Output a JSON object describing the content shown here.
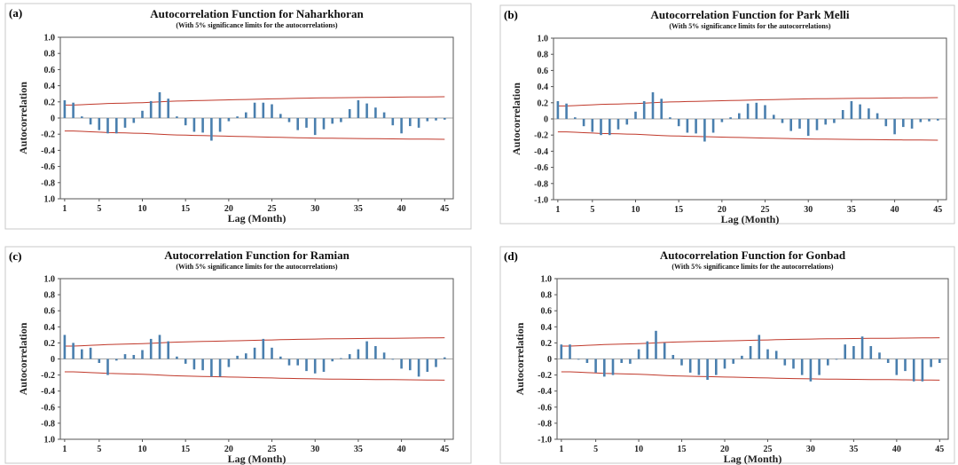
{
  "chart_data": [
    {
      "type": "bar",
      "panel_label": "(a)",
      "title": "Autocorrelation Function for Naharkhoran",
      "subtitle": "(With 5% significance limits for the autocorrelations)",
      "xlabel": "Lag (Month)",
      "ylabel": "Autocorrelation",
      "xlim": [
        0.5,
        46
      ],
      "ylim": [
        -1.0,
        1.0
      ],
      "xticks": [
        1,
        5,
        10,
        15,
        20,
        25,
        30,
        35,
        40,
        45
      ],
      "yticks": [
        "1.0",
        "0.8",
        "0.6",
        "0.4",
        "0.2",
        "0",
        "-0.2",
        "-0.4",
        "-0.6",
        "-0.8",
        "1.0"
      ],
      "x": [
        1,
        2,
        3,
        4,
        5,
        6,
        7,
        8,
        9,
        10,
        11,
        12,
        13,
        14,
        15,
        16,
        17,
        18,
        19,
        20,
        21,
        22,
        23,
        24,
        25,
        26,
        27,
        28,
        29,
        30,
        31,
        32,
        33,
        34,
        35,
        36,
        37,
        38,
        39,
        40,
        41,
        42,
        43,
        44,
        45
      ],
      "values": [
        0.22,
        0.19,
        0.02,
        -0.08,
        -0.15,
        -0.19,
        -0.19,
        -0.12,
        -0.06,
        0.09,
        0.21,
        0.32,
        0.24,
        0.02,
        -0.09,
        -0.17,
        -0.18,
        -0.28,
        -0.17,
        -0.04,
        0.02,
        0.07,
        0.19,
        0.19,
        0.17,
        0.05,
        -0.05,
        -0.15,
        -0.12,
        -0.21,
        -0.14,
        -0.07,
        -0.05,
        0.11,
        0.22,
        0.18,
        0.13,
        0.07,
        -0.09,
        -0.19,
        -0.1,
        -0.12,
        -0.04,
        -0.03,
        -0.02
      ],
      "limit_upper": [
        0.16,
        0.16,
        0.165,
        0.17,
        0.175,
        0.18,
        0.182,
        0.185,
        0.188,
        0.19,
        0.195,
        0.2,
        0.205,
        0.21,
        0.212,
        0.215,
        0.218,
        0.22,
        0.222,
        0.225,
        0.227,
        0.23,
        0.232,
        0.235,
        0.237,
        0.24,
        0.242,
        0.244,
        0.246,
        0.248,
        0.25,
        0.251,
        0.252,
        0.253,
        0.254,
        0.255,
        0.256,
        0.257,
        0.258,
        0.259,
        0.26,
        0.261,
        0.262,
        0.263,
        0.264
      ]
    },
    {
      "type": "bar",
      "panel_label": "(b)",
      "title": "Autocorrelation Function for Park Melli",
      "subtitle": "(With 5% significance limits for the autocorrelations)",
      "xlabel": "Lag (Month)",
      "ylabel": "Autocorrelation",
      "xlim": [
        0.5,
        46
      ],
      "ylim": [
        -1.0,
        1.0
      ],
      "xticks": [
        1,
        5,
        10,
        15,
        20,
        25,
        30,
        35,
        40,
        45
      ],
      "yticks": [
        "1.0",
        "0.8",
        "0.6",
        "0.4",
        "0.2",
        "0",
        "-0.2",
        "-0.4",
        "-0.6",
        "-0.8",
        "-1.0"
      ],
      "x": [
        1,
        2,
        3,
        4,
        5,
        6,
        7,
        8,
        9,
        10,
        11,
        12,
        13,
        14,
        15,
        16,
        17,
        18,
        19,
        20,
        21,
        22,
        23,
        24,
        25,
        26,
        27,
        28,
        29,
        30,
        31,
        32,
        33,
        34,
        35,
        36,
        37,
        38,
        39,
        40,
        41,
        42,
        43,
        44,
        45
      ],
      "values": [
        0.22,
        0.19,
        0.02,
        -0.09,
        -0.16,
        -0.2,
        -0.2,
        -0.13,
        -0.07,
        0.09,
        0.22,
        0.33,
        0.25,
        0.02,
        -0.09,
        -0.17,
        -0.18,
        -0.28,
        -0.17,
        -0.04,
        0.02,
        0.07,
        0.19,
        0.2,
        0.17,
        0.05,
        -0.05,
        -0.15,
        -0.12,
        -0.21,
        -0.14,
        -0.07,
        -0.05,
        0.11,
        0.22,
        0.18,
        0.13,
        0.07,
        -0.09,
        -0.19,
        -0.1,
        -0.12,
        -0.04,
        -0.03,
        -0.02
      ],
      "limit_upper": [
        0.16,
        0.16,
        0.165,
        0.17,
        0.175,
        0.18,
        0.182,
        0.185,
        0.188,
        0.19,
        0.195,
        0.2,
        0.205,
        0.21,
        0.212,
        0.215,
        0.218,
        0.22,
        0.222,
        0.225,
        0.227,
        0.23,
        0.232,
        0.235,
        0.237,
        0.24,
        0.242,
        0.244,
        0.246,
        0.248,
        0.25,
        0.251,
        0.252,
        0.253,
        0.254,
        0.255,
        0.256,
        0.257,
        0.258,
        0.259,
        0.26,
        0.261,
        0.262,
        0.263,
        0.264
      ]
    },
    {
      "type": "bar",
      "panel_label": "(c)",
      "title": "Autocorrelation Function for  Ramian",
      "subtitle": "(With 5% significance limits for the autocorrelations)",
      "xlabel": "Lag (Month)",
      "ylabel": "Autocorrelation",
      "xlim": [
        0.5,
        46
      ],
      "ylim": [
        -1.0,
        1.0
      ],
      "xticks": [
        1,
        5,
        10,
        15,
        20,
        25,
        30,
        35,
        40,
        45
      ],
      "yticks": [
        "1.0",
        "0.8",
        "0.6",
        "0.4",
        "0.2",
        "0",
        "-0.2",
        "-0.4",
        "-0.6",
        "-0.8",
        "1.0"
      ],
      "x": [
        1,
        2,
        3,
        4,
        5,
        6,
        7,
        8,
        9,
        10,
        11,
        12,
        13,
        14,
        15,
        16,
        17,
        18,
        19,
        20,
        21,
        22,
        23,
        24,
        25,
        26,
        27,
        28,
        29,
        30,
        31,
        32,
        33,
        34,
        35,
        36,
        37,
        38,
        39,
        40,
        41,
        42,
        43,
        44,
        45
      ],
      "values": [
        0.3,
        0.2,
        0.12,
        0.14,
        -0.05,
        -0.2,
        -0.02,
        0.06,
        0.05,
        0.11,
        0.25,
        0.3,
        0.22,
        0.03,
        -0.06,
        -0.13,
        -0.14,
        -0.22,
        -0.22,
        -0.1,
        0.04,
        0.07,
        0.14,
        0.25,
        0.14,
        0.03,
        -0.08,
        -0.08,
        -0.15,
        -0.18,
        -0.16,
        -0.03,
        0.01,
        0.06,
        0.12,
        0.22,
        0.16,
        0.08,
        0.0,
        -0.12,
        -0.14,
        -0.22,
        -0.16,
        -0.1,
        0.02
      ],
      "limit_upper": [
        0.16,
        0.16,
        0.165,
        0.17,
        0.175,
        0.18,
        0.182,
        0.185,
        0.188,
        0.19,
        0.195,
        0.2,
        0.205,
        0.21,
        0.212,
        0.215,
        0.218,
        0.22,
        0.222,
        0.225,
        0.227,
        0.23,
        0.232,
        0.235,
        0.237,
        0.24,
        0.242,
        0.244,
        0.246,
        0.248,
        0.25,
        0.251,
        0.252,
        0.253,
        0.254,
        0.255,
        0.256,
        0.257,
        0.258,
        0.259,
        0.26,
        0.261,
        0.262,
        0.263,
        0.264
      ]
    },
    {
      "type": "bar",
      "panel_label": "(d)",
      "title": "Autocorrelation Function for Gonbad",
      "subtitle": "(With 5% significance limits for the autocorrelations)",
      "xlabel": "Lag (Month)",
      "ylabel": "Autocorrelation",
      "xlim": [
        0.5,
        46
      ],
      "ylim": [
        -1.0,
        1.0
      ],
      "xticks": [
        1,
        5,
        10,
        15,
        20,
        25,
        30,
        35,
        40,
        45
      ],
      "yticks": [
        "1.0",
        "0.8",
        "0.6",
        "0.4",
        "0.2",
        "0",
        "-0.2",
        "-0.4",
        "-0.6",
        "-0.8",
        "-1.0"
      ],
      "x": [
        1,
        2,
        3,
        4,
        5,
        6,
        7,
        8,
        9,
        10,
        11,
        12,
        13,
        14,
        15,
        16,
        17,
        18,
        19,
        20,
        21,
        22,
        23,
        24,
        25,
        26,
        27,
        28,
        29,
        30,
        31,
        32,
        33,
        34,
        35,
        36,
        37,
        38,
        39,
        40,
        41,
        42,
        43,
        44,
        45
      ],
      "values": [
        0.18,
        0.18,
        0.0,
        -0.05,
        -0.17,
        -0.22,
        -0.2,
        -0.05,
        -0.06,
        0.12,
        0.22,
        0.35,
        0.2,
        0.05,
        -0.08,
        -0.17,
        -0.2,
        -0.26,
        -0.2,
        -0.12,
        -0.06,
        0.04,
        0.16,
        0.3,
        0.12,
        0.1,
        -0.08,
        -0.12,
        -0.2,
        -0.28,
        -0.2,
        -0.08,
        0.0,
        0.18,
        0.16,
        0.28,
        0.16,
        0.08,
        -0.05,
        -0.2,
        -0.15,
        -0.28,
        -0.28,
        -0.1,
        -0.05
      ],
      "limit_upper": [
        0.16,
        0.16,
        0.165,
        0.17,
        0.175,
        0.18,
        0.182,
        0.185,
        0.188,
        0.19,
        0.195,
        0.2,
        0.205,
        0.21,
        0.212,
        0.215,
        0.218,
        0.22,
        0.222,
        0.225,
        0.227,
        0.23,
        0.232,
        0.235,
        0.237,
        0.24,
        0.242,
        0.244,
        0.246,
        0.248,
        0.25,
        0.251,
        0.252,
        0.253,
        0.254,
        0.255,
        0.256,
        0.257,
        0.258,
        0.259,
        0.26,
        0.261,
        0.262,
        0.263,
        0.264
      ]
    }
  ],
  "colors": {
    "bar": "#4a7fae",
    "limit": "#c0392b"
  }
}
